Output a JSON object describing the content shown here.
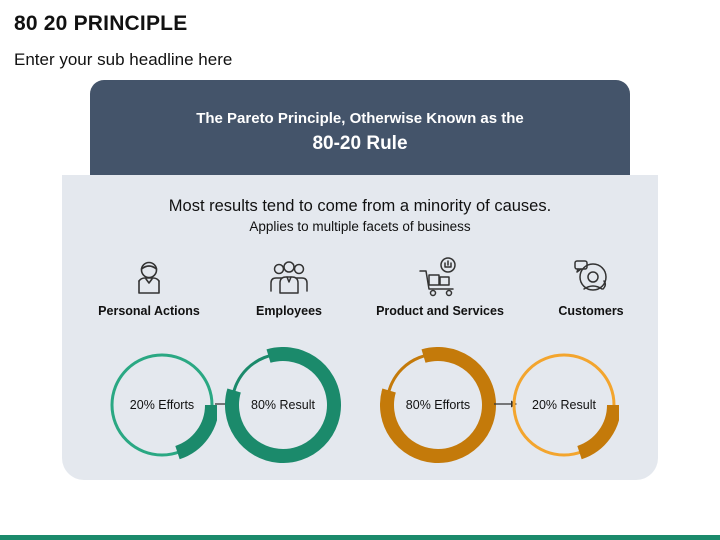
{
  "slide": {
    "title": "80 20 PRINCIPLE",
    "subtitle": "Enter your sub headline here"
  },
  "header": {
    "line1": "The Pareto Principle, Otherwise Known as the",
    "line2": "80-20 Rule"
  },
  "panel": {
    "line1": "Most results tend to come from a minority of causes.",
    "line2": "Applies to multiple facets of business"
  },
  "facets": [
    {
      "label": "Personal Actions",
      "icon": "person-icon"
    },
    {
      "label": "Employees",
      "icon": "team-icon"
    },
    {
      "label": "Product and Services",
      "icon": "cart-icon"
    },
    {
      "label": "Customers",
      "icon": "support-agent-icon"
    }
  ],
  "rings": [
    {
      "label": "20% Efforts",
      "percent": 20,
      "color": "#1b8a6b"
    },
    {
      "label": "80% Result",
      "percent": 80,
      "color": "#1b8a6b"
    },
    {
      "label": "80% Efforts",
      "percent": 80,
      "color": "#c47a0a"
    },
    {
      "label": "20% Result",
      "percent": 20,
      "color": "#f3a52e"
    }
  ],
  "colors": {
    "header_bg": "#44546a",
    "panel_bg": "#e4e8ee",
    "green": "#1b8a6b",
    "green_light": "#2aa883",
    "orange_dark": "#c47a0a",
    "orange_light": "#f3a52e",
    "bottom_bar": "#1b8a6b"
  }
}
